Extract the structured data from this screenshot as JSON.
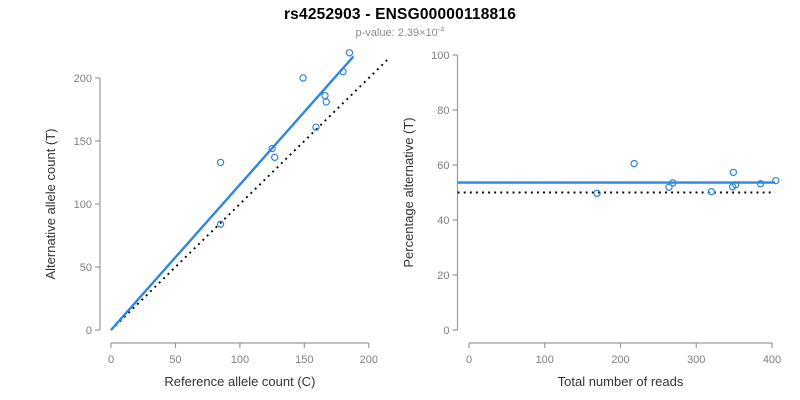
{
  "header": {
    "title": "rs4252903 - ENSG00000118816",
    "subtitle_base": "p-value: 2.39×10",
    "subtitle_exponent": "-4"
  },
  "colors": {
    "accent_blue": "#2E86DE",
    "line_black": "#000000",
    "axis_line": "#9a9a9a",
    "tick_label": "#808080",
    "axis_title": "#333333",
    "title_color": "#000000",
    "subtitle_color": "#8c8c8c"
  },
  "chart_data": [
    {
      "type": "scatter",
      "panel": "left",
      "xlabel": "Reference allele count (C)",
      "ylabel": "Alternative allele count (T)",
      "xticks": [
        0,
        50,
        100,
        150,
        200
      ],
      "yticks": [
        0,
        50,
        100,
        150,
        200
      ],
      "xlim": [
        0,
        216
      ],
      "ylim": [
        0,
        222
      ],
      "points": [
        [
          85,
          84
        ],
        [
          85,
          133
        ],
        [
          125,
          144
        ],
        [
          127,
          137
        ],
        [
          149,
          200
        ],
        [
          159,
          161
        ],
        [
          166,
          186
        ],
        [
          167,
          181
        ],
        [
          180,
          205
        ],
        [
          185,
          220
        ]
      ],
      "lines": [
        {
          "name": "regression-line",
          "x1": 0,
          "y1": 0,
          "x2": 188,
          "y2": 217,
          "color": "blue",
          "dash": false
        },
        {
          "name": "identity-line",
          "x1": 0,
          "y1": 0,
          "x2": 216,
          "y2": 216,
          "color": "black",
          "dash": true
        }
      ]
    },
    {
      "type": "scatter",
      "panel": "right",
      "xlabel": "Total number of reads",
      "ylabel": "Percentage alternative (T)",
      "xticks": [
        0,
        100,
        200,
        300,
        400
      ],
      "yticks": [
        0,
        20,
        40,
        60,
        80,
        100
      ],
      "xlim": [
        -15,
        404
      ],
      "ylim": [
        0,
        100
      ],
      "points": [
        [
          169,
          49.7
        ],
        [
          218,
          60.5
        ],
        [
          264,
          51.9
        ],
        [
          269,
          53.5
        ],
        [
          320,
          50.3
        ],
        [
          348,
          52.1
        ],
        [
          349,
          57.3
        ],
        [
          352,
          52.8
        ],
        [
          385,
          53.2
        ],
        [
          405,
          54.3
        ]
      ],
      "lines": [
        {
          "name": "mean-line",
          "x1": -15,
          "y1": 53.6,
          "x2": 404,
          "y2": 53.6,
          "color": "blue",
          "dash": false
        },
        {
          "name": "null-line",
          "x1": -15,
          "y1": 50,
          "x2": 404,
          "y2": 50,
          "color": "black",
          "dash": true
        }
      ]
    }
  ]
}
